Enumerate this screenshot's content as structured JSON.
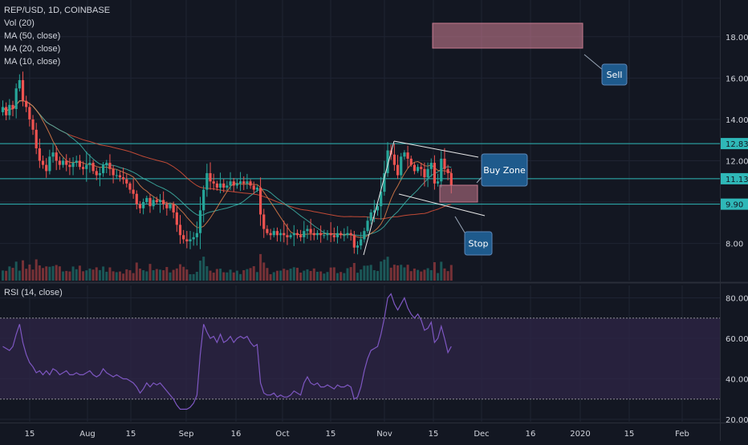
{
  "legend": {
    "symbol": "REP/USD, 1D, COINBASE",
    "vol": "Vol (20)",
    "ma50": "MA (50, close)",
    "ma20": "MA (20, close)",
    "ma10": "MA (10, close)"
  },
  "rsi_title": "RSI (14, close)",
  "colors": {
    "background": "#131722",
    "up": "#26a69a",
    "down": "#ef5350",
    "ma50": "#e0533a",
    "ma20": "#3fb5a8",
    "ma10": "#e07f4a",
    "rsi_line": "#7e57c2",
    "rsi_band": "#2f2547",
    "level_line": "#2fb8b8",
    "zone_fill": "#c5798d",
    "callout_fill": "#1e5a8c"
  },
  "chart_data": [
    {
      "type": "candlestick",
      "title": "REP/USD, 1D, COINBASE",
      "x_ticks": [
        "15",
        "Aug",
        "15",
        "Sep",
        "16",
        "Oct",
        "15",
        "Nov",
        "15",
        "Dec",
        "16",
        "2020",
        "15",
        "Feb"
      ],
      "y_ticks": [
        "8.00",
        "10.00",
        "12.00",
        "14.00",
        "16.00",
        "18.00"
      ],
      "ylim": [
        6.5,
        19.8
      ],
      "price_labels": [
        "12.83",
        "11.13",
        "9.90"
      ],
      "horizontal_levels": [
        12.83,
        11.13,
        9.9
      ],
      "annotations": [
        "Sell",
        "Buy Zone",
        "Stop"
      ],
      "close": [
        14.6,
        14.2,
        14.7,
        14.5,
        15.5,
        15.9,
        14.9,
        14.6,
        14.0,
        13.5,
        12.6,
        12.0,
        11.8,
        11.5,
        12.2,
        12.4,
        12.0,
        11.8,
        12.0,
        11.8,
        11.7,
        11.9,
        12.0,
        11.7,
        11.6,
        11.8,
        11.9,
        11.5,
        11.3,
        11.4,
        11.8,
        11.9,
        11.6,
        11.3,
        11.3,
        11.2,
        11.1,
        10.9,
        10.6,
        10.4,
        9.9,
        9.7,
        10.0,
        10.2,
        9.8,
        10.1,
        10.0,
        10.1,
        9.9,
        9.7,
        9.9,
        9.5,
        8.9,
        8.4,
        8.2,
        8.1,
        8.2,
        8.3,
        8.5,
        9.6,
        10.6,
        11.4,
        11.0,
        10.9,
        10.7,
        10.9,
        10.7,
        10.8,
        11.0,
        10.8,
        10.9,
        11.0,
        10.9,
        11.0,
        10.8,
        10.6,
        10.7,
        9.4,
        8.7,
        8.5,
        8.4,
        8.6,
        8.4,
        8.5,
        8.4,
        8.3,
        8.4,
        8.5,
        8.4,
        8.3,
        8.6,
        8.7,
        8.5,
        8.4,
        8.5,
        8.4,
        8.4,
        8.5,
        8.4,
        8.3,
        8.5,
        8.4,
        8.4,
        8.5,
        8.4,
        7.8,
        7.9,
        8.2,
        8.6,
        9.1,
        9.5,
        9.6,
        9.8,
        10.5,
        11.4,
        12.5,
        12.3,
        11.8,
        11.3,
        12.2,
        12.4,
        12.1,
        11.8,
        11.5,
        11.7,
        11.6,
        11.2,
        11.6,
        11.9,
        10.9,
        11.0,
        12.1,
        11.6,
        11.4,
        10.8
      ],
      "rsi": {
        "title": "RSI (14, close)",
        "y_ticks": [
          "20.00",
          "40.00",
          "60.00",
          "80.00"
        ],
        "ylim": [
          20,
          86
        ],
        "overbought": 70,
        "oversold": 30,
        "values": [
          56,
          55,
          54,
          56,
          62,
          67,
          58,
          52,
          48,
          46,
          43,
          44,
          42,
          44,
          42,
          45,
          44,
          42,
          43,
          44,
          42,
          42,
          43,
          42,
          42,
          43,
          44,
          42,
          41,
          42,
          45,
          43,
          42,
          41,
          42,
          41,
          40,
          40,
          39,
          38,
          36,
          33,
          35,
          38,
          36,
          38,
          37,
          38,
          36,
          34,
          32,
          30,
          27,
          25,
          25,
          25,
          26,
          28,
          32,
          52,
          67,
          63,
          60,
          61,
          58,
          62,
          58,
          59,
          61,
          58,
          60,
          61,
          60,
          61,
          58,
          56,
          57,
          38,
          33,
          32,
          32,
          33,
          31,
          32,
          31,
          31,
          32,
          34,
          33,
          32,
          38,
          41,
          38,
          37,
          38,
          36,
          36,
          37,
          36,
          35,
          37,
          36,
          36,
          37,
          36,
          30,
          31,
          36,
          44,
          50,
          54,
          55,
          56,
          62,
          70,
          80,
          82,
          77,
          74,
          77,
          80,
          75,
          72,
          70,
          72,
          69,
          64,
          65,
          68,
          58,
          60,
          66,
          60,
          53,
          56
        ]
      }
    }
  ]
}
